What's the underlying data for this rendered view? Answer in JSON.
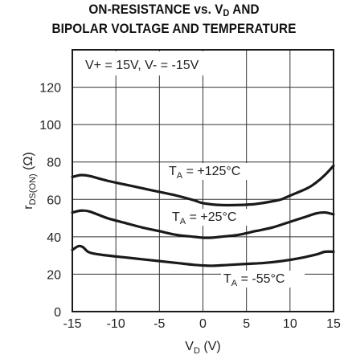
{
  "title_line1": "ON-RESISTANCE vs. V",
  "title_line1_sub": "D",
  "title_line1_tail": " AND",
  "title_line2": "BIPOLAR VOLTAGE AND TEMPERATURE",
  "chart_data": {
    "type": "line",
    "condition_label": "V+ = 15V, V- = -15V",
    "xlabel_main": "V",
    "xlabel_sub": "D",
    "xlabel_tail": " (V)",
    "ylabel_main": "r",
    "ylabel_sub": "DS(ON)",
    "ylabel_tail": " (Ω)",
    "xlim": [
      -15,
      15
    ],
    "ylim": [
      0,
      140
    ],
    "x_ticks": [
      -15,
      -10,
      -5,
      0,
      5,
      10,
      15
    ],
    "y_ticks": [
      0,
      20,
      40,
      60,
      80,
      100,
      120
    ],
    "grid": true,
    "line_color": "#1a1a1a",
    "series": [
      {
        "name_main": "T",
        "name_sub": "A",
        "name_tail": " = +125°C",
        "x": [
          -15,
          -14,
          -13,
          -11,
          -9,
          -7,
          -5,
          -3,
          -1,
          0,
          2,
          4,
          6,
          8,
          9,
          10,
          12,
          13,
          14,
          15
        ],
        "y": [
          72,
          73,
          72.5,
          70,
          68,
          66,
          64,
          62,
          59.5,
          58,
          57,
          57,
          57.5,
          59,
          60,
          62,
          66,
          69,
          73,
          78
        ]
      },
      {
        "name_main": "T",
        "name_sub": "A",
        "name_tail": " = +25°C",
        "x": [
          -15,
          -14,
          -13,
          -11,
          -9,
          -7,
          -5,
          -3,
          -1,
          0,
          1,
          2,
          4,
          6,
          8,
          10,
          12,
          13,
          14,
          15
        ],
        "y": [
          53,
          54,
          53.5,
          50,
          47.5,
          45,
          43,
          41,
          40,
          39.5,
          39.5,
          40,
          41,
          43,
          45,
          48,
          51,
          52.5,
          53,
          52
        ]
      },
      {
        "name_main": "T",
        "name_sub": "A",
        "name_tail": " = -55°C",
        "x": [
          -15,
          -14.3,
          -13.8,
          -13.2,
          -12.5,
          -11,
          -9,
          -7,
          -5,
          -3,
          -1,
          1,
          3,
          5,
          7,
          9,
          11,
          13,
          14,
          15
        ],
        "y": [
          33,
          35,
          34.5,
          32,
          31,
          30,
          29,
          28,
          27,
          26,
          25,
          24.5,
          25,
          25.5,
          26,
          27,
          28.5,
          30.5,
          32,
          32
        ]
      }
    ]
  }
}
